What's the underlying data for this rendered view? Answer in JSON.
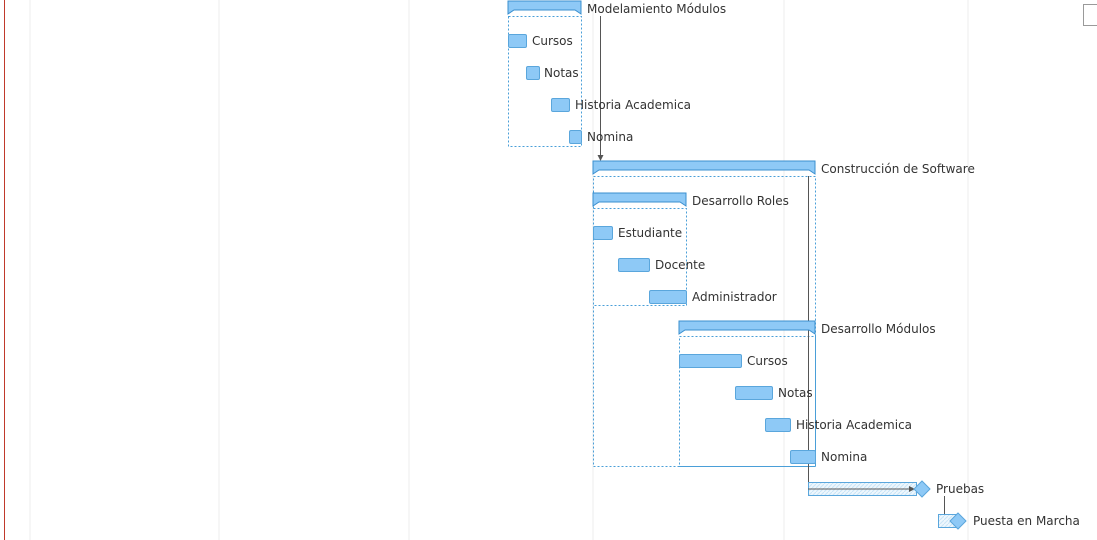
{
  "gantt": {
    "colors": {
      "bar_fill": "#8ec9f6",
      "bar_stroke": "#5aa6dc",
      "group_stroke": "#3a8fcf",
      "dashed_box": "#4a9fd8",
      "gridline": "#ececec",
      "left_border": "#c0392b",
      "dependency": "#555555",
      "hatched": "#c9e4f7"
    },
    "tasks": [
      {
        "id": "t1",
        "label": "Modelamiento Módulos",
        "kind": "group"
      },
      {
        "id": "t2",
        "label": "Cursos",
        "kind": "task"
      },
      {
        "id": "t3",
        "label": "Notas",
        "kind": "task"
      },
      {
        "id": "t4",
        "label": "Historia Academica",
        "kind": "task"
      },
      {
        "id": "t5",
        "label": "Nomina",
        "kind": "task"
      },
      {
        "id": "t6",
        "label": "Construcción de Software",
        "kind": "group"
      },
      {
        "id": "t7",
        "label": "Desarrollo Roles",
        "kind": "group"
      },
      {
        "id": "t8",
        "label": "Estudiante",
        "kind": "task"
      },
      {
        "id": "t9",
        "label": "Docente",
        "kind": "task"
      },
      {
        "id": "t10",
        "label": "Administrador",
        "kind": "task"
      },
      {
        "id": "t11",
        "label": "Desarrollo Módulos",
        "kind": "group"
      },
      {
        "id": "t12",
        "label": "Cursos",
        "kind": "task"
      },
      {
        "id": "t13",
        "label": "Notas",
        "kind": "task"
      },
      {
        "id": "t14",
        "label": "Historia Academica",
        "kind": "task"
      },
      {
        "id": "t15",
        "label": "Nomina",
        "kind": "task"
      },
      {
        "id": "t16",
        "label": "Pruebas",
        "kind": "milestone-task"
      },
      {
        "id": "t17",
        "label": "Puesta en Marcha",
        "kind": "milestone"
      }
    ]
  }
}
